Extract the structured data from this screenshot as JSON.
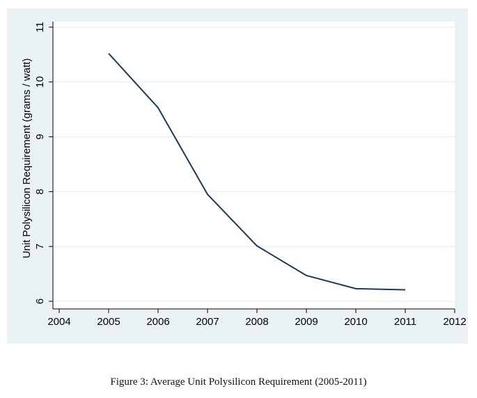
{
  "chart_data": {
    "type": "line",
    "x": [
      2005,
      2006,
      2007,
      2008,
      2009,
      2010,
      2011
    ],
    "series": [
      {
        "values": [
          10.52,
          9.53,
          7.95,
          7.01,
          6.47,
          6.23,
          6.21
        ]
      }
    ],
    "xlabel": "",
    "ylabel": "Unit Polysilicon Requirement (grams / watt)",
    "xlim": [
      2004,
      2012
    ],
    "ylim": [
      6,
      11
    ],
    "x_ticks": [
      "2004",
      "2005",
      "2006",
      "2007",
      "2008",
      "2009",
      "2010",
      "2011",
      "2012"
    ],
    "y_ticks": [
      "6",
      "7",
      "8",
      "9",
      "10",
      "11"
    ],
    "grid": true,
    "line_color": "#1a3a5c",
    "background_color": "#eaf2f3",
    "plot_background_color": "#ffffff"
  },
  "caption": "Figure 3:  Average Unit Polysilicon Requirement (2005-2011)"
}
